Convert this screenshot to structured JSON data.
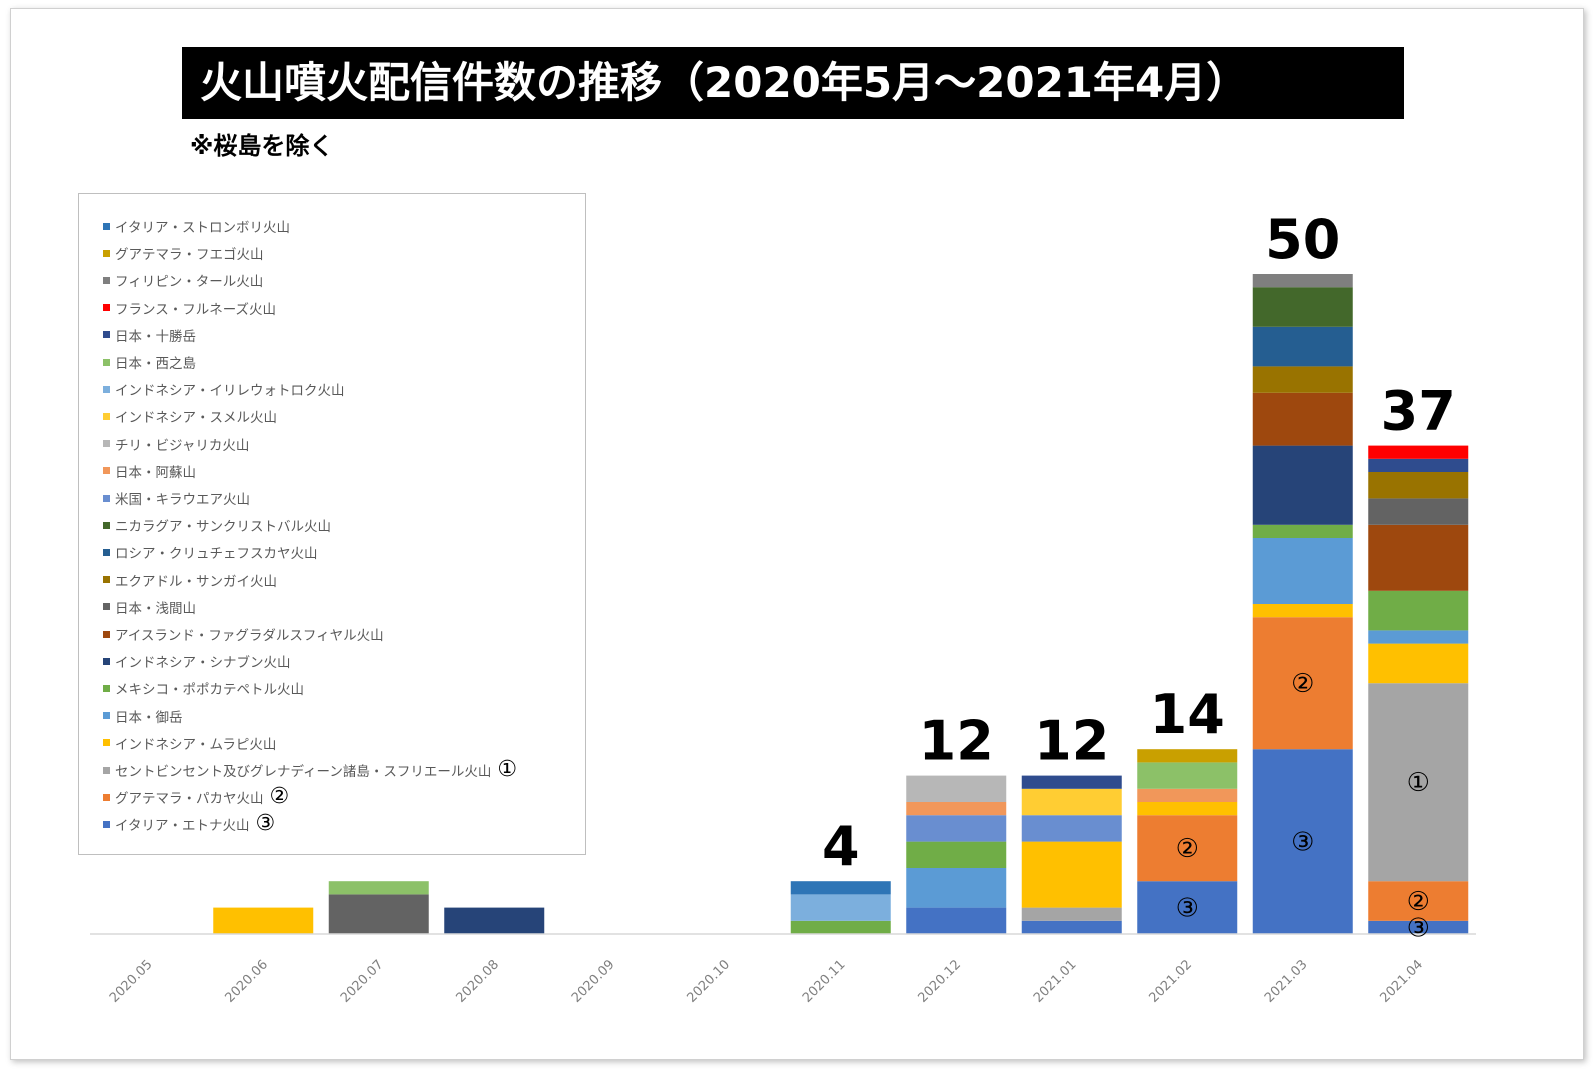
{
  "chart_data": {
    "type": "bar",
    "stacked": true,
    "title": "火山噴火配信件数の推移（2020年5月～2021年4月）",
    "subtitle": "※桜島を除く",
    "xlabel": "",
    "ylabel": "",
    "ylim": [
      0,
      50
    ],
    "grid": false,
    "legend_position": "top-left",
    "categories": [
      "2020.05",
      "2020.06",
      "2020.07",
      "2020.08",
      "2020.09",
      "2020.10",
      "2020.11",
      "2020.12",
      "2021.01",
      "2021.02",
      "2021.03",
      "2021.04"
    ],
    "totals": [
      {
        "category": "2020.11",
        "label": "4"
      },
      {
        "category": "2020.12",
        "label": "12"
      },
      {
        "category": "2021.01",
        "label": "12"
      },
      {
        "category": "2021.02",
        "label": "14"
      },
      {
        "category": "2021.03",
        "label": "50"
      },
      {
        "category": "2021.04",
        "label": "37"
      }
    ],
    "series": [
      {
        "name": "イタリア・エトナ火山",
        "color": "#4472C4",
        "mark": "③",
        "values": [
          0,
          0,
          0,
          0,
          0,
          0,
          0,
          2,
          1,
          4,
          14,
          1
        ]
      },
      {
        "name": "グアテマラ・パカヤ火山",
        "color": "#ED7D31",
        "mark": "②",
        "values": [
          0,
          0,
          0,
          0,
          0,
          0,
          0,
          0,
          0,
          5,
          10,
          3
        ]
      },
      {
        "name": "セントビンセント及びグレナディーン諸島・スフリエール火山",
        "color": "#A5A5A5",
        "mark": "①",
        "values": [
          0,
          0,
          0,
          0,
          0,
          0,
          0,
          0,
          1,
          0,
          0,
          15
        ]
      },
      {
        "name": "インドネシア・ムラピ火山",
        "color": "#FFC000",
        "mark": "",
        "values": [
          0,
          2,
          0,
          0,
          0,
          0,
          0,
          0,
          5,
          1,
          1,
          3
        ]
      },
      {
        "name": "日本・御岳",
        "color": "#5B9BD5",
        "mark": "",
        "values": [
          0,
          0,
          0,
          0,
          0,
          0,
          0,
          3,
          0,
          0,
          5,
          1
        ]
      },
      {
        "name": "メキシコ・ポポカテペトル火山",
        "color": "#70AD47",
        "mark": "",
        "values": [
          0,
          0,
          0,
          0,
          0,
          0,
          1,
          2,
          0,
          0,
          1,
          3
        ]
      },
      {
        "name": "インドネシア・シナブン火山",
        "color": "#264478",
        "mark": "",
        "values": [
          0,
          0,
          0,
          2,
          0,
          0,
          0,
          0,
          0,
          0,
          6,
          0
        ]
      },
      {
        "name": "アイスランド・ファグラダルスフィヤル火山",
        "color": "#9E480E",
        "mark": "",
        "values": [
          0,
          0,
          0,
          0,
          0,
          0,
          0,
          0,
          0,
          0,
          4,
          5
        ]
      },
      {
        "name": "日本・浅間山",
        "color": "#636363",
        "mark": "",
        "values": [
          0,
          0,
          3,
          0,
          0,
          0,
          0,
          0,
          0,
          0,
          0,
          2
        ]
      },
      {
        "name": "エクアドル・サンガイ火山",
        "color": "#997300",
        "mark": "",
        "values": [
          0,
          0,
          0,
          0,
          0,
          0,
          0,
          0,
          0,
          0,
          2,
          2
        ]
      },
      {
        "name": "ロシア・クリュチェフスカヤ火山",
        "color": "#255E91",
        "mark": "",
        "values": [
          0,
          0,
          0,
          0,
          0,
          0,
          0,
          0,
          0,
          0,
          3,
          0
        ]
      },
      {
        "name": "ニカラグア・サンクリストバル火山",
        "color": "#43682B",
        "mark": "",
        "values": [
          0,
          0,
          0,
          0,
          0,
          0,
          0,
          0,
          0,
          0,
          3,
          0
        ]
      },
      {
        "name": "米国・キラウエア火山",
        "color": "#698ED0",
        "mark": "",
        "values": [
          0,
          0,
          0,
          0,
          0,
          0,
          0,
          2,
          2,
          0,
          0,
          0
        ]
      },
      {
        "name": "日本・阿蘇山",
        "color": "#F1975A",
        "mark": "",
        "values": [
          0,
          0,
          0,
          0,
          0,
          0,
          0,
          1,
          0,
          1,
          0,
          0
        ]
      },
      {
        "name": "チリ・ビジャリカ火山",
        "color": "#B7B7B7",
        "mark": "",
        "values": [
          0,
          0,
          0,
          0,
          0,
          0,
          0,
          2,
          0,
          0,
          0,
          0
        ]
      },
      {
        "name": "インドネシア・スメル火山",
        "color": "#FFCD33",
        "mark": "",
        "values": [
          0,
          0,
          0,
          0,
          0,
          0,
          0,
          0,
          2,
          0,
          0,
          0
        ]
      },
      {
        "name": "インドネシア・イリレウォトロク火山",
        "color": "#7CAFDD",
        "mark": "",
        "values": [
          0,
          0,
          0,
          0,
          0,
          0,
          2,
          0,
          0,
          0,
          0,
          0
        ]
      },
      {
        "name": "日本・西之島",
        "color": "#8CC168",
        "mark": "",
        "values": [
          0,
          0,
          1,
          0,
          0,
          0,
          0,
          0,
          0,
          2,
          0,
          0
        ]
      },
      {
        "name": "日本・十勝岳",
        "color": "#2F4C8E",
        "mark": "",
        "values": [
          0,
          0,
          0,
          0,
          0,
          0,
          0,
          0,
          1,
          0,
          0,
          1
        ]
      },
      {
        "name": "フランス・フルネーズ火山",
        "color": "#FF0000",
        "mark": "",
        "values": [
          0,
          0,
          0,
          0,
          0,
          0,
          0,
          0,
          0,
          0,
          0,
          1
        ]
      },
      {
        "name": "フィリピン・タール火山",
        "color": "#7F7F7F",
        "mark": "",
        "values": [
          0,
          0,
          0,
          0,
          0,
          0,
          0,
          0,
          0,
          0,
          1,
          0
        ]
      },
      {
        "name": "グアテマラ・フエゴ火山",
        "color": "#C9A000",
        "mark": "",
        "values": [
          0,
          0,
          0,
          0,
          0,
          0,
          0,
          0,
          0,
          1,
          0,
          0
        ]
      },
      {
        "name": "イタリア・ストロンボリ火山",
        "color": "#2E75B6",
        "mark": "",
        "values": [
          0,
          0,
          0,
          0,
          0,
          0,
          1,
          0,
          0,
          0,
          0,
          0
        ]
      }
    ],
    "bar_marks": [
      {
        "category": "2021.02",
        "series": "イタリア・エトナ火山",
        "label": "③"
      },
      {
        "category": "2021.02",
        "series": "グアテマラ・パカヤ火山",
        "label": "②"
      },
      {
        "category": "2021.03",
        "series": "イタリア・エトナ火山",
        "label": "③"
      },
      {
        "category": "2021.03",
        "series": "グアテマラ・パカヤ火山",
        "label": "②"
      },
      {
        "category": "2021.04",
        "series": "セントビンセント及びグレナディーン諸島・スフリエール火山",
        "label": "①"
      },
      {
        "category": "2021.04",
        "series": "グアテマラ・パカヤ火山",
        "label": "②"
      },
      {
        "category": "2021.04",
        "series": "イタリア・エトナ火山",
        "label": "③"
      }
    ]
  }
}
